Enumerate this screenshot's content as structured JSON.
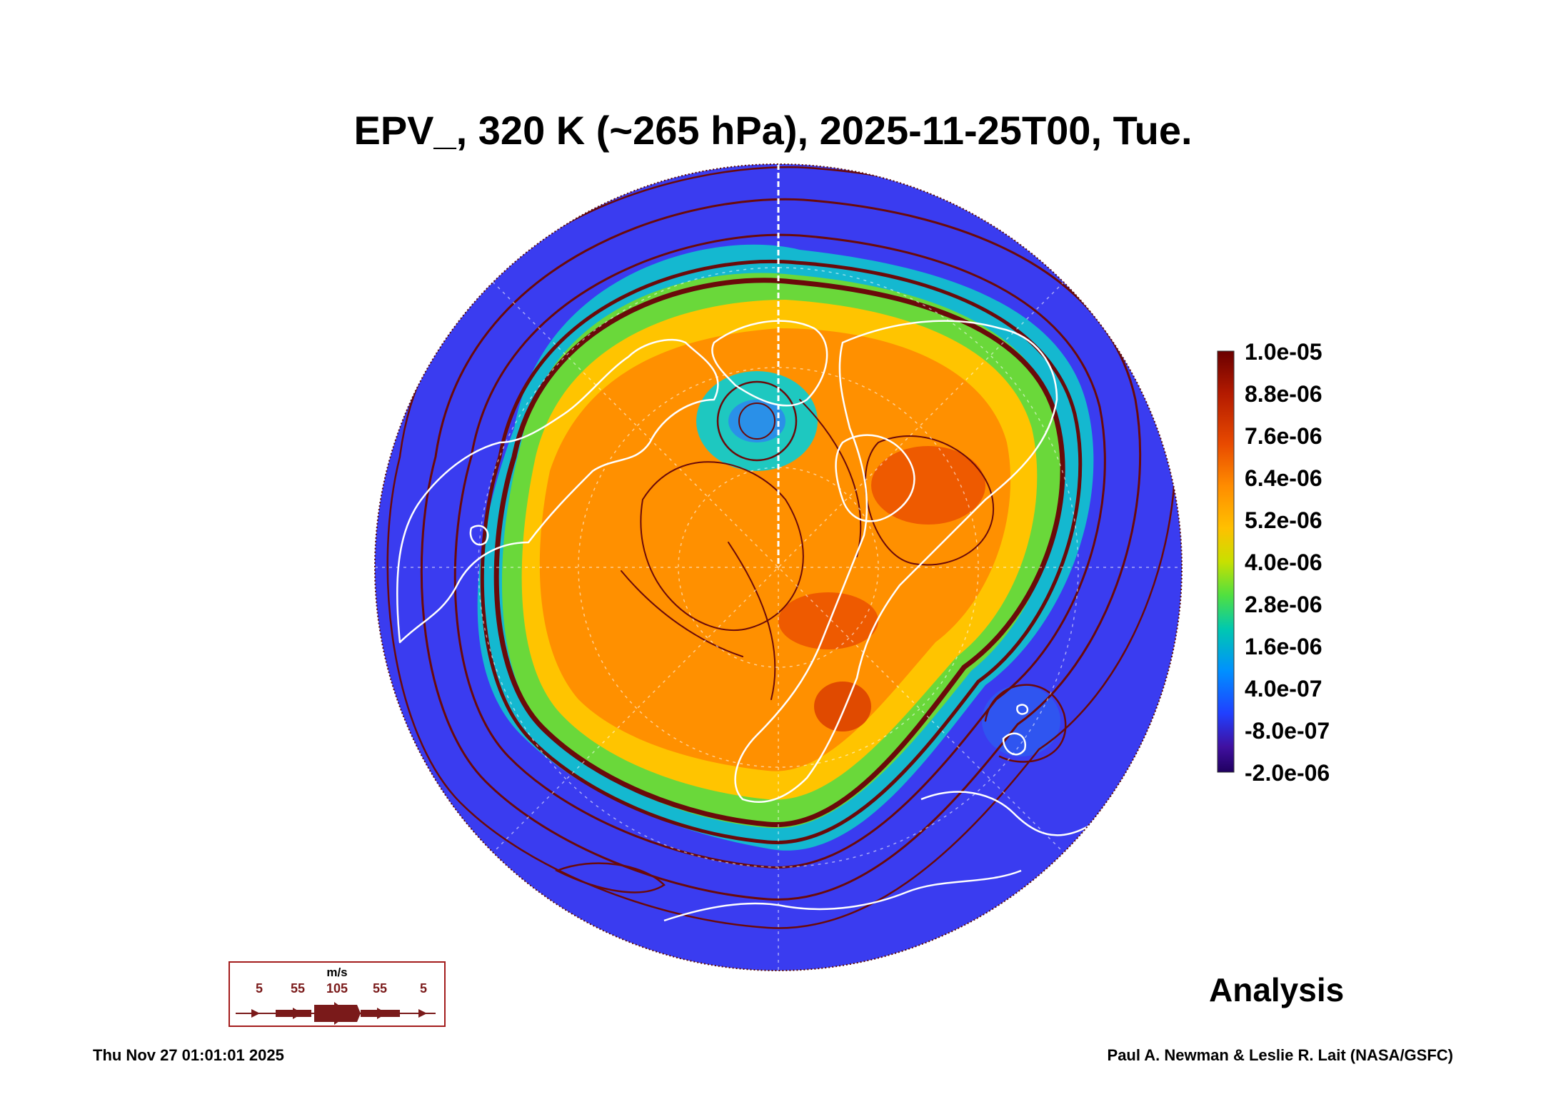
{
  "title": "EPV_, 320 K (~265 hPa), 2025-11-25T00, Tue.",
  "colorbar": {
    "labels": [
      "1.0e-05",
      "8.8e-06",
      "7.6e-06",
      "6.4e-06",
      "5.2e-06",
      "4.0e-06",
      "2.8e-06",
      "1.6e-06",
      "4.0e-07",
      "-8.0e-07",
      "-2.0e-06"
    ],
    "colors": [
      "#6a0000",
      "#b31a00",
      "#e84a00",
      "#ff8c00",
      "#ffc000",
      "#c8e000",
      "#50e040",
      "#00c8b0",
      "#0090ff",
      "#2040ff",
      "#4010a0",
      "#200060"
    ]
  },
  "wind_legend": {
    "units": "m/s",
    "values": [
      "5",
      "55",
      "105",
      "55",
      "5"
    ],
    "color": "#7a1a1a"
  },
  "label": "Analysis",
  "timestamp": "Thu Nov 27 01:01:01 2025",
  "credit": "Paul A. Newman & Leslie R. Lait (NASA/GSFC)",
  "map": {
    "ocean_low_color": "#3a3cf0",
    "high_pv_color": "#ff9a00",
    "streamline_color": "#6a0a0a",
    "coast_color": "#ffffff"
  }
}
